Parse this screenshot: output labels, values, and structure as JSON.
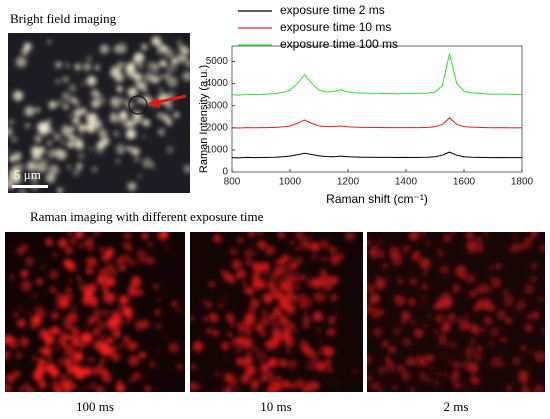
{
  "bright_field": {
    "title": "Bright field imaging",
    "scale_bar": "5 μm"
  },
  "raman_imaging": {
    "title": "Raman imaging with different exposure time",
    "labels": [
      "100 ms",
      "10 ms",
      "2 ms"
    ]
  },
  "chart_data": {
    "type": "line",
    "xlabel": "Raman shift (cm⁻¹)",
    "ylabel": "Raman Intensity (a.u.)",
    "x": [
      800,
      825,
      850,
      875,
      900,
      925,
      950,
      975,
      1000,
      1025,
      1050,
      1075,
      1100,
      1125,
      1150,
      1175,
      1200,
      1225,
      1250,
      1275,
      1300,
      1325,
      1350,
      1375,
      1400,
      1425,
      1450,
      1475,
      1500,
      1525,
      1550,
      1575,
      1600,
      1625,
      1650,
      1675,
      1700,
      1725,
      1750,
      1775,
      1800
    ],
    "series": [
      {
        "name": "exposure time 2 ms",
        "color": "#000000",
        "values": [
          650,
          640,
          660,
          650,
          655,
          660,
          670,
          690,
          720,
          780,
          850,
          790,
          730,
          700,
          690,
          720,
          690,
          680,
          670,
          670,
          665,
          660,
          660,
          655,
          660,
          655,
          660,
          670,
          690,
          760,
          900,
          760,
          690,
          670,
          660,
          655,
          650,
          655,
          650,
          648,
          650
        ]
      },
      {
        "name": "exposure time 10 ms",
        "color": "#e02020",
        "values": [
          2000,
          1990,
          2010,
          2000,
          2005,
          2010,
          2020,
          2040,
          2080,
          2200,
          2350,
          2200,
          2080,
          2050,
          2050,
          2080,
          2040,
          2030,
          2020,
          2020,
          2015,
          2010,
          2010,
          2005,
          2010,
          2005,
          2010,
          2020,
          2050,
          2150,
          2450,
          2150,
          2050,
          2030,
          2020,
          2010,
          2000,
          2005,
          2000,
          1995,
          2000
        ]
      },
      {
        "name": "exposure time 100 ms",
        "color": "#30e030",
        "values": [
          3500,
          3480,
          3520,
          3500,
          3510,
          3530,
          3550,
          3600,
          3700,
          4000,
          4400,
          4000,
          3700,
          3620,
          3640,
          3720,
          3620,
          3580,
          3570,
          3560,
          3560,
          3550,
          3550,
          3540,
          3560,
          3550,
          3560,
          3570,
          3620,
          3900,
          5350,
          4000,
          3650,
          3580,
          3560,
          3540,
          3520,
          3530,
          3520,
          3510,
          3500
        ]
      }
    ],
    "xlim": [
      800,
      1800
    ],
    "xticks": [
      800,
      1000,
      1200,
      1400,
      1600,
      1800
    ],
    "ylim": [
      0,
      5700
    ],
    "yticks": [
      0,
      1000,
      2000,
      3000,
      4000,
      5000
    ],
    "legend": "top"
  }
}
